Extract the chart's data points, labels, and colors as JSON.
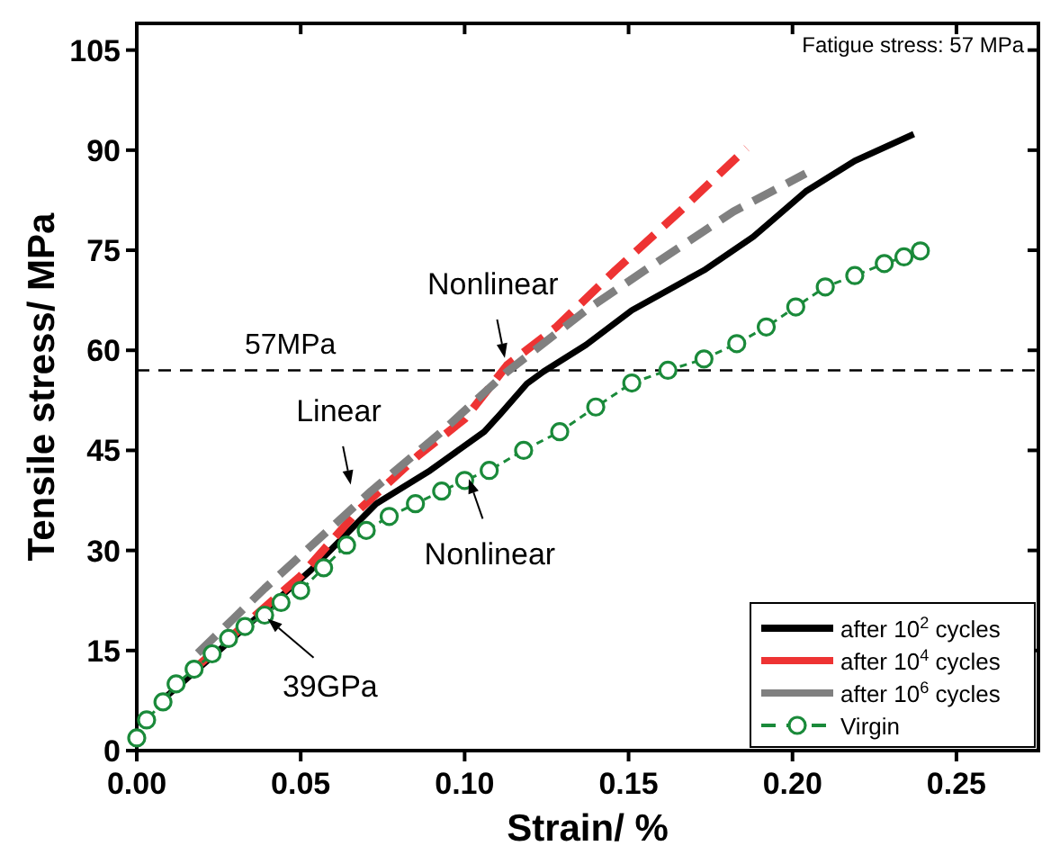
{
  "chart_data": {
    "type": "line",
    "xlabel": "Strain/ %",
    "ylabel": "Tensile stress/ MPa",
    "xlim": [
      0,
      0.275
    ],
    "ylim": [
      0,
      109
    ],
    "xticks": [
      {
        "value": 0,
        "label": "0.00"
      },
      0.05,
      {
        "value": 0.1,
        "label": "0.10"
      },
      0.15,
      {
        "value": 0.2,
        "label": "0.20"
      },
      0.25
    ],
    "yticks": [
      0,
      15,
      30,
      45,
      60,
      75,
      90,
      105
    ],
    "legend": "bottom right",
    "grid": false,
    "series": [
      {
        "name": "after 10$^{2}$ cycles",
        "color": "#000000",
        "line_style": "solid",
        "marker": "none",
        "x": [
          0.009,
          0.053,
          0.073,
          0.0895,
          0.106,
          0.111,
          0.119,
          0.124,
          0.137,
          0.151,
          0.173,
          0.188,
          0.204,
          0.219,
          0.237
        ],
        "values": [
          8.1,
          27,
          37,
          42,
          47.8,
          50.5,
          55,
          56.8,
          60.8,
          66,
          72,
          77,
          83.8,
          88.4,
          92.4
        ]
      },
      {
        "name": "after 10$^{4}$ cycles",
        "color": "#ee3333",
        "line_style": "dashed",
        "marker": "none",
        "x": [
          0.0186,
          0.05,
          0.068,
          0.086,
          0.1,
          0.113,
          0.128,
          0.146,
          0.166,
          0.186
        ],
        "values": [
          12.7,
          26.2,
          36.2,
          44.3,
          49.7,
          57.8,
          63.5,
          72,
          81,
          90.3
        ]
      },
      {
        "name": "after 10$^{6}$ cycles",
        "color": "#808080",
        "line_style": "dashed",
        "marker": "none",
        "x": [
          0.0186,
          0.039,
          0.0715,
          0.093,
          0.113,
          0.137,
          0.155,
          0.182,
          0.204
        ],
        "values": [
          14.6,
          24.3,
          38.9,
          47.8,
          56.8,
          66,
          72,
          80.8,
          86.5
        ]
      },
      {
        "name": "Virgin",
        "color": "#1a8a3a",
        "line_style": "dashed",
        "marker": "circle",
        "x": [
          0,
          0.003,
          0.008,
          0.012,
          0.0175,
          0.023,
          0.028,
          0.033,
          0.039,
          0.044,
          0.05,
          0.057,
          0.064,
          0.07,
          0.077,
          0.085,
          0.093,
          0.1,
          0.1075,
          0.118,
          0.129,
          0.14,
          0.151,
          0.162,
          0.173,
          0.183,
          0.192,
          0.201,
          0.21,
          0.219,
          0.228,
          0.234,
          0.239
        ],
        "values": [
          1.9,
          4.6,
          7.3,
          10,
          12.2,
          14.5,
          16.8,
          18.6,
          20.3,
          22.2,
          24,
          27.4,
          30.8,
          33,
          35.1,
          37,
          38.9,
          40.5,
          42,
          45,
          47.8,
          51.5,
          55.1,
          57,
          58.7,
          61,
          63.5,
          66.5,
          69.5,
          71.2,
          73,
          74,
          74.9
        ]
      }
    ],
    "ref_lines": [
      {
        "axis": "y",
        "value": 57,
        "label": "57MPa",
        "color": "#000000",
        "line_style": "dashed"
      }
    ],
    "annotations": [
      "Fatigue stress: 57 MPa",
      {
        "text": "Nonlinear",
        "x": 0.113,
        "y": 57
      },
      {
        "text": "Linear",
        "x": 0.066,
        "y": 38
      },
      {
        "text": "Nonlinear",
        "x": 0.1,
        "y": 42.5
      },
      {
        "text": "39GPa",
        "x": 0.037,
        "y": 21
      }
    ]
  }
}
